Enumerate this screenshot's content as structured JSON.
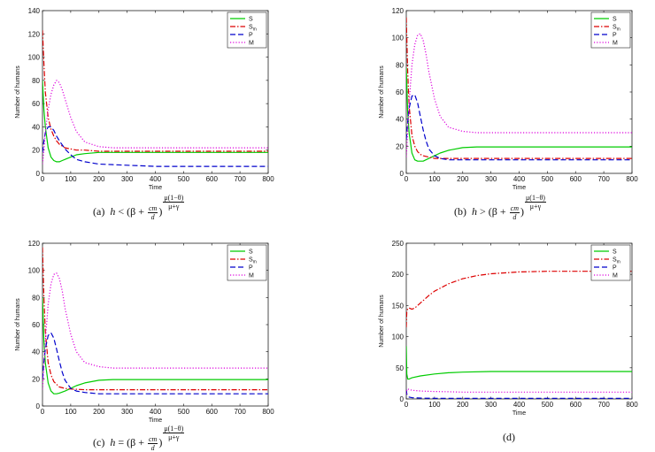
{
  "chart_data": [
    {
      "id": "a",
      "type": "line",
      "xlabel": "Time",
      "ylabel": "Number of humans",
      "xlim": [
        0,
        800
      ],
      "ylim": [
        0,
        140
      ],
      "xticks": [
        0,
        100,
        200,
        300,
        400,
        500,
        600,
        700,
        800
      ],
      "yticks": [
        0,
        20,
        40,
        60,
        80,
        100,
        120,
        140
      ],
      "legend_position": "top-right",
      "caption": {
        "label": "(a)",
        "lhs": "h",
        "rel": "<",
        "paren_open": "(β +",
        "frac1_num": "cm",
        "frac1_den": "d",
        "paren_close": ")",
        "frac2_num": "μ(1−θ)",
        "frac2_den": "μ+γ"
      },
      "series": [
        {
          "name": "S",
          "sub": "",
          "color": "#00cc00",
          "dash": "solid",
          "x": [
            0,
            5,
            10,
            20,
            30,
            40,
            50,
            60,
            70,
            80,
            100,
            120,
            150,
            200,
            250,
            300,
            400,
            500,
            600,
            700,
            800
          ],
          "values": [
            80,
            55,
            40,
            22,
            14,
            11,
            10,
            10,
            11,
            12,
            14,
            16,
            17,
            18,
            18,
            18,
            18,
            18,
            18,
            18,
            18
          ]
        },
        {
          "name": "S",
          "sub": "m",
          "color": "#dd0000",
          "dash": "dashdot",
          "x": [
            0,
            5,
            10,
            20,
            30,
            40,
            50,
            60,
            80,
            100,
            120,
            150,
            200,
            300,
            400,
            500,
            600,
            700,
            800
          ],
          "values": [
            123,
            95,
            70,
            48,
            38,
            32,
            28,
            25,
            22,
            21,
            20,
            20,
            19,
            19,
            19,
            19,
            19,
            19,
            19
          ]
        },
        {
          "name": "P",
          "sub": "",
          "color": "#0000cc",
          "dash": "dashed",
          "x": [
            0,
            5,
            10,
            20,
            30,
            40,
            50,
            60,
            80,
            100,
            120,
            150,
            200,
            300,
            400,
            500,
            600,
            700,
            800
          ],
          "values": [
            18,
            28,
            35,
            40,
            40,
            37,
            32,
            28,
            21,
            16,
            12,
            10,
            8,
            7,
            6,
            6,
            6,
            6,
            6
          ]
        },
        {
          "name": "M",
          "sub": "",
          "color": "#dd00dd",
          "dash": "dotted",
          "x": [
            0,
            5,
            10,
            20,
            30,
            40,
            50,
            60,
            70,
            80,
            100,
            120,
            150,
            200,
            250,
            300,
            400,
            500,
            600,
            700,
            800
          ],
          "values": [
            8,
            20,
            35,
            55,
            68,
            76,
            80,
            78,
            72,
            64,
            48,
            36,
            27,
            23,
            22,
            22,
            22,
            22,
            22,
            22,
            22
          ]
        }
      ]
    },
    {
      "id": "b",
      "type": "line",
      "xlabel": "Time",
      "ylabel": "Number of humans",
      "xlim": [
        0,
        800
      ],
      "ylim": [
        0,
        120
      ],
      "xticks": [
        0,
        100,
        200,
        300,
        400,
        500,
        600,
        700,
        800
      ],
      "yticks": [
        0,
        20,
        40,
        60,
        80,
        100,
        120
      ],
      "legend_position": "top-right",
      "caption": {
        "label": "(b)",
        "lhs": "h",
        "rel": ">",
        "paren_open": "(β +",
        "frac1_num": "cm",
        "frac1_den": "d",
        "paren_close": ")",
        "frac2_num": "μ(1−θ)",
        "frac2_den": "μ+γ"
      },
      "series": [
        {
          "name": "S",
          "sub": "",
          "color": "#00cc00",
          "dash": "solid",
          "x": [
            0,
            5,
            10,
            20,
            30,
            40,
            50,
            60,
            80,
            100,
            120,
            150,
            200,
            250,
            300,
            400,
            500,
            600,
            700,
            800
          ],
          "values": [
            78,
            45,
            30,
            15,
            10,
            9,
            9,
            9,
            11,
            13,
            15,
            17,
            19,
            19.5,
            19.5,
            19.5,
            19.5,
            19.5,
            19.5,
            19.5
          ]
        },
        {
          "name": "S",
          "sub": "m",
          "color": "#dd0000",
          "dash": "dashdot",
          "x": [
            0,
            5,
            10,
            20,
            30,
            40,
            50,
            60,
            80,
            100,
            150,
            200,
            300,
            400,
            500,
            600,
            700,
            800
          ],
          "values": [
            115,
            75,
            50,
            28,
            20,
            16,
            14,
            13,
            12,
            11,
            11,
            11,
            11,
            11,
            11,
            11,
            11,
            11
          ]
        },
        {
          "name": "P",
          "sub": "",
          "color": "#0000cc",
          "dash": "dashed",
          "x": [
            0,
            5,
            10,
            20,
            30,
            40,
            50,
            60,
            70,
            80,
            100,
            120,
            150,
            200,
            300,
            400,
            500,
            600,
            700,
            800
          ],
          "values": [
            25,
            38,
            48,
            57,
            58,
            52,
            42,
            32,
            24,
            18,
            13,
            11,
            10,
            10,
            10,
            10,
            10,
            10,
            10,
            10
          ]
        },
        {
          "name": "M",
          "sub": "",
          "color": "#dd00dd",
          "dash": "dotted",
          "x": [
            0,
            5,
            10,
            20,
            30,
            40,
            50,
            60,
            70,
            80,
            100,
            120,
            150,
            200,
            250,
            300,
            400,
            500,
            600,
            700,
            800
          ],
          "values": [
            12,
            30,
            52,
            80,
            95,
            102,
            103,
            98,
            88,
            75,
            55,
            42,
            34,
            31,
            30,
            30,
            30,
            30,
            30,
            30,
            30
          ]
        }
      ]
    },
    {
      "id": "c",
      "type": "line",
      "xlabel": "Time",
      "ylabel": "Number of humans",
      "xlim": [
        0,
        800
      ],
      "ylim": [
        0,
        120
      ],
      "xticks": [
        0,
        100,
        200,
        300,
        400,
        500,
        600,
        700,
        800
      ],
      "yticks": [
        0,
        20,
        40,
        60,
        80,
        100,
        120
      ],
      "legend_position": "top-right",
      "caption": {
        "label": "(c)",
        "lhs": "h",
        "rel": "=",
        "paren_open": "(β +",
        "frac1_num": "cm",
        "frac1_den": "d",
        "paren_close": ")",
        "frac2_num": "μ(1−θ)",
        "frac2_den": "μ+γ"
      },
      "series": [
        {
          "name": "S",
          "sub": "",
          "color": "#00cc00",
          "dash": "solid",
          "x": [
            0,
            5,
            10,
            20,
            30,
            40,
            50,
            60,
            80,
            100,
            120,
            150,
            200,
            250,
            300,
            400,
            500,
            600,
            700,
            800
          ],
          "values": [
            80,
            48,
            32,
            17,
            11,
            9,
            9,
            9.5,
            11,
            13,
            15,
            17,
            19,
            19.5,
            19.5,
            19.5,
            19.5,
            19.5,
            19.5,
            19.5
          ]
        },
        {
          "name": "S",
          "sub": "m",
          "color": "#dd0000",
          "dash": "dashdot",
          "x": [
            0,
            5,
            10,
            20,
            30,
            40,
            50,
            60,
            80,
            100,
            150,
            200,
            300,
            400,
            500,
            600,
            700,
            800
          ],
          "values": [
            117,
            80,
            55,
            32,
            23,
            18,
            16,
            14,
            13,
            12.5,
            12,
            12,
            12,
            12,
            12,
            12,
            12,
            12
          ]
        },
        {
          "name": "P",
          "sub": "",
          "color": "#0000cc",
          "dash": "dashed",
          "x": [
            0,
            5,
            10,
            20,
            30,
            40,
            50,
            60,
            70,
            80,
            100,
            120,
            150,
            200,
            300,
            400,
            500,
            600,
            700,
            800
          ],
          "values": [
            20,
            33,
            42,
            52,
            54,
            50,
            42,
            33,
            25,
            19,
            13,
            11,
            10,
            9,
            9,
            9,
            9,
            9,
            9,
            9
          ]
        },
        {
          "name": "M",
          "sub": "",
          "color": "#dd00dd",
          "dash": "dotted",
          "x": [
            0,
            5,
            10,
            20,
            30,
            40,
            50,
            60,
            70,
            80,
            100,
            120,
            150,
            200,
            250,
            300,
            400,
            500,
            600,
            700,
            800
          ],
          "values": [
            12,
            28,
            48,
            75,
            90,
            97,
            98,
            94,
            85,
            72,
            53,
            40,
            32,
            29,
            28,
            28,
            28,
            28,
            28,
            28,
            28
          ]
        }
      ]
    },
    {
      "id": "d",
      "type": "line",
      "xlabel": "Time",
      "ylabel": "Number of humans",
      "xlim": [
        0,
        800
      ],
      "ylim": [
        0,
        250
      ],
      "xticks": [
        0,
        100,
        200,
        300,
        400,
        500,
        600,
        700,
        800
      ],
      "yticks": [
        0,
        50,
        100,
        150,
        200,
        250
      ],
      "legend_position": "top-right",
      "caption": {
        "label": "(d)"
      },
      "series": [
        {
          "name": "S",
          "sub": "",
          "color": "#00cc00",
          "dash": "solid",
          "x": [
            0,
            2,
            5,
            10,
            20,
            50,
            100,
            150,
            200,
            300,
            400,
            500,
            600,
            700,
            800
          ],
          "values": [
            85,
            40,
            32,
            32,
            34,
            37,
            40,
            42,
            43,
            44,
            44,
            44,
            44,
            44,
            44
          ]
        },
        {
          "name": "S",
          "sub": "m",
          "color": "#dd0000",
          "dash": "dashdot",
          "x": [
            0,
            2,
            5,
            10,
            20,
            30,
            40,
            60,
            80,
            100,
            150,
            200,
            250,
            300,
            400,
            500,
            600,
            700,
            800
          ],
          "values": [
            115,
            140,
            145,
            146,
            144,
            146,
            150,
            158,
            166,
            173,
            185,
            193,
            198,
            201,
            204,
            205,
            205,
            205,
            205
          ]
        },
        {
          "name": "P",
          "sub": "",
          "color": "#0000cc",
          "dash": "dashed",
          "x": [
            0,
            2,
            5,
            10,
            20,
            40,
            60,
            100,
            200,
            300,
            400,
            500,
            600,
            700,
            800
          ],
          "values": [
            15,
            8,
            5,
            3,
            2,
            1.5,
            1.2,
            1,
            1,
            1,
            1,
            1,
            1,
            1,
            1
          ]
        },
        {
          "name": "M",
          "sub": "",
          "color": "#dd00dd",
          "dash": "dotted",
          "x": [
            0,
            2,
            5,
            10,
            20,
            40,
            60,
            100,
            150,
            200,
            300,
            400,
            500,
            600,
            700,
            800
          ],
          "values": [
            8,
            14,
            16,
            15,
            14,
            13,
            12.5,
            12,
            11.5,
            11,
            11,
            11,
            11,
            11,
            11,
            11
          ]
        }
      ]
    }
  ]
}
